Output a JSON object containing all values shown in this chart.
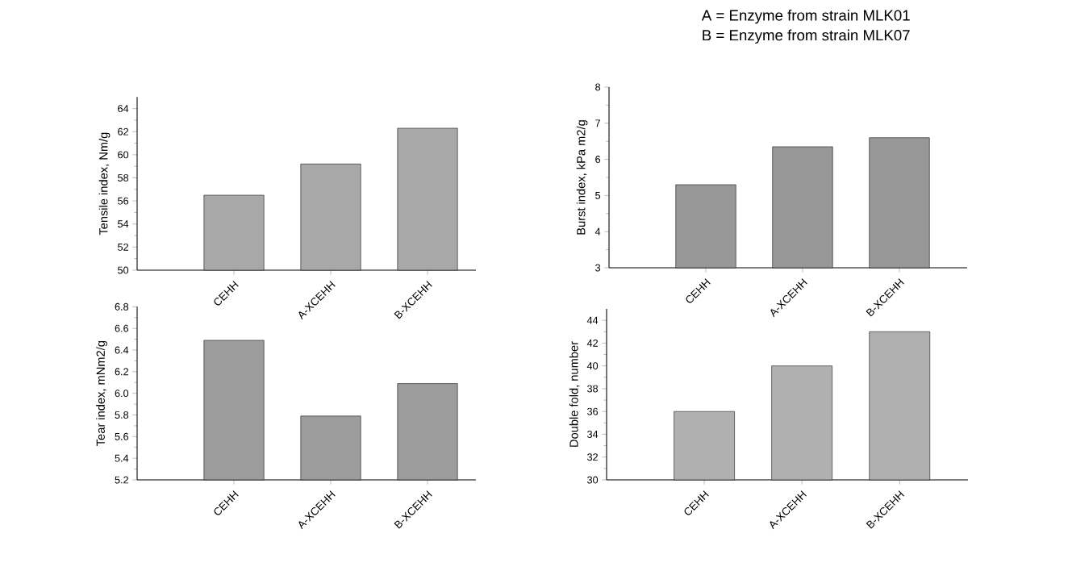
{
  "chart_data": [
    {
      "type": "bar",
      "categories": [
        "CEHH",
        "A-XCEHH",
        "B-XCEHH"
      ],
      "values": [
        56.5,
        59.2,
        62.3
      ],
      "color": "#a8a8a8",
      "ylabel": "Tensile index, Nm/g",
      "ylim": [
        50,
        65
      ],
      "yticks": [
        50,
        52,
        54,
        56,
        58,
        60,
        62,
        64
      ]
    },
    {
      "type": "bar",
      "categories": [
        "CEHH",
        "A-XCEHH",
        "B-XCEHH"
      ],
      "values": [
        5.3,
        6.35,
        6.6
      ],
      "color": "#989898",
      "ylabel": "Burst index, kPa m2/g",
      "ylim": [
        3,
        8
      ],
      "yticks": [
        3,
        4,
        5,
        6,
        7,
        8
      ],
      "annotations": [
        "A = Enzyme from strain MLK01",
        "B = Enzyme from strain MLK07"
      ]
    },
    {
      "type": "bar",
      "categories": [
        "CEHH",
        "A-XCEHH",
        "B-XCEHH"
      ],
      "values": [
        6.49,
        5.79,
        6.09
      ],
      "color": "#9c9c9c",
      "ylabel": "Tear index, mNm2/g",
      "ylim": [
        5.2,
        6.8
      ],
      "yticks": [
        5.2,
        5.4,
        5.6,
        5.8,
        {
          "value": 6.0,
          "label": "6.0"
        },
        6.2,
        6.4,
        6.6,
        6.8
      ]
    },
    {
      "type": "bar",
      "categories": [
        "CEHH",
        "A-XCEHH",
        "B-XCEHH"
      ],
      "values": [
        36,
        40,
        43
      ],
      "color": "#b0b0b0",
      "ylabel": "Double fold, number",
      "ylim": [
        30,
        45
      ],
      "yticks": [
        30,
        32,
        34,
        36,
        38,
        40,
        42,
        44
      ]
    }
  ]
}
